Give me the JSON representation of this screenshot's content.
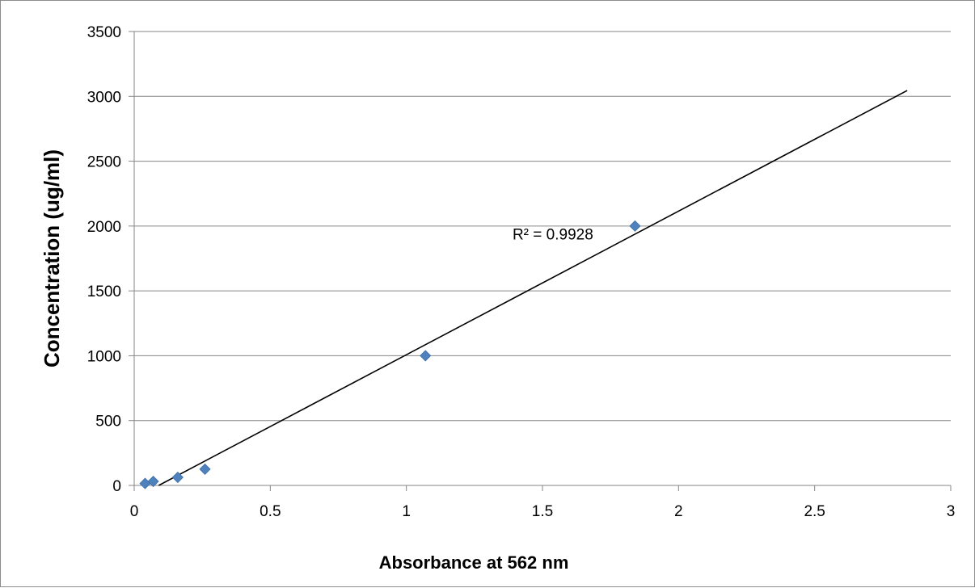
{
  "chart_data": {
    "type": "scatter",
    "title": "",
    "xlabel": "Absorbance at 562 nm",
    "ylabel": "Concentration (ug/ml)",
    "xlim": [
      0,
      3
    ],
    "ylim": [
      0,
      3500
    ],
    "xticks": [
      "0",
      "0.5",
      "1",
      "1.5",
      "2",
      "2.5",
      "3"
    ],
    "yticks": [
      "0",
      "500",
      "1000",
      "1500",
      "2000",
      "2500",
      "3000",
      "3500"
    ],
    "grid": "horizontal major gridlines",
    "legend": "none",
    "series": [
      {
        "points": [
          {
            "x": 0.04,
            "y": 15
          },
          {
            "x": 0.07,
            "y": 31
          },
          {
            "x": 0.16,
            "y": 62
          },
          {
            "x": 0.26,
            "y": 125
          },
          {
            "x": 1.07,
            "y": 1000
          },
          {
            "x": 1.84,
            "y": 2000
          }
        ],
        "marker": "diamond",
        "color": "#4f81bd"
      }
    ],
    "trendline": {
      "type": "linear",
      "x_range": [
        0.09,
        2.84
      ],
      "y_at_start": 0,
      "y_at_end": 3045,
      "color": "#000000"
    },
    "annotations": [
      {
        "text": "R² = 0.9928",
        "x": 1.39,
        "y": 1940
      }
    ]
  }
}
